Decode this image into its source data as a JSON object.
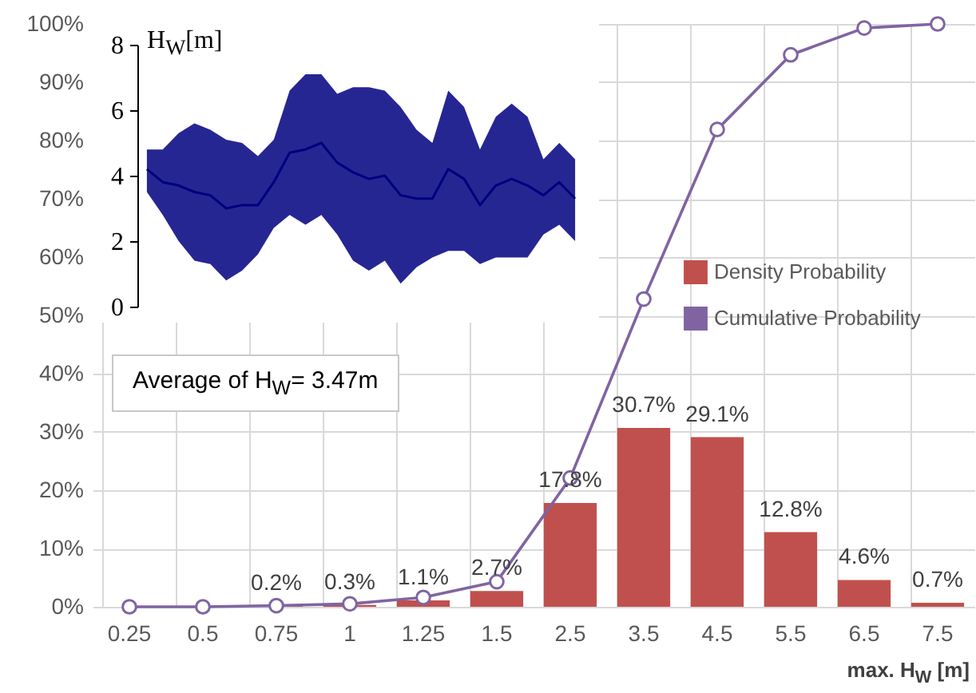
{
  "chart_data": [
    {
      "type": "bar",
      "categories": [
        "0.25",
        "0.5",
        "0.75",
        "1",
        "1.25",
        "1.5",
        "2.5",
        "3.5",
        "4.5",
        "5.5",
        "6.5",
        "7.5"
      ],
      "series": [
        {
          "name": "Density Probability",
          "type": "bar",
          "color": "#c0504d",
          "values": [
            0,
            0,
            0.2,
            0.3,
            1.1,
            2.7,
            17.8,
            30.7,
            29.1,
            12.8,
            4.6,
            0.7
          ],
          "value_labels": [
            null,
            null,
            "0.2%",
            "0.3%",
            "1.1%",
            "2.7%",
            "17.8%",
            "30.7%",
            "29.1%",
            "12.8%",
            "4.6%",
            "0.7%"
          ]
        },
        {
          "name": "Cumulative Probability",
          "type": "line",
          "color": "#8064a2",
          "values": [
            0,
            0,
            0.2,
            0.5,
            1.6,
            4.3,
            22.1,
            52.8,
            81.9,
            94.7,
            99.3,
            100
          ]
        }
      ],
      "xlabel": "max. H$_{W}$ [m]",
      "ylim": [
        0,
        100
      ],
      "yticks": [
        {
          "value": 0,
          "label": "0%"
        },
        {
          "value": 10,
          "label": "10%"
        },
        {
          "value": 20,
          "label": "20%"
        },
        {
          "value": 30,
          "label": "30%"
        },
        {
          "value": 40,
          "label": "40%"
        },
        {
          "value": 50,
          "label": "50%"
        },
        {
          "value": 60,
          "label": "60%"
        },
        {
          "value": 70,
          "label": "70%"
        },
        {
          "value": 80,
          "label": "80%"
        },
        {
          "value": 90,
          "label": "90%"
        },
        {
          "value": 100,
          "label": "100%"
        }
      ],
      "grid": true,
      "legend": "right",
      "marker": "circle",
      "annotations": [
        "Average  of H$_{W}$= 3.47m"
      ]
    },
    {
      "type": "line",
      "categories": [
        null,
        null,
        null,
        null,
        null,
        null,
        null,
        null,
        null,
        null,
        null,
        null,
        null,
        null,
        null,
        null,
        null,
        null,
        null,
        null,
        null,
        null,
        null,
        null,
        null,
        null,
        null,
        null
      ],
      "series": [
        {
          "color": "#000080",
          "values": [
            4.2,
            3.8,
            3.7,
            3.5,
            3.4,
            3.0,
            3.1,
            3.1,
            3.8,
            4.7,
            4.8,
            5.0,
            4.4,
            4.1,
            3.9,
            4.0,
            3.4,
            3.3,
            3.3,
            4.2,
            3.9,
            3.1,
            3.7,
            3.9,
            3.7,
            3.4,
            3.8,
            3.3
          ],
          "upper": [
            4.8,
            4.8,
            5.3,
            5.6,
            5.4,
            5.1,
            5.0,
            4.6,
            5.1,
            6.6,
            7.1,
            7.1,
            6.5,
            6.7,
            6.7,
            6.6,
            6.1,
            5.4,
            5.0,
            6.6,
            6.1,
            4.8,
            5.8,
            6.2,
            5.8,
            4.5,
            5.0,
            4.5
          ],
          "lower": [
            3.5,
            2.8,
            2.0,
            1.4,
            1.3,
            0.8,
            1.1,
            1.6,
            2.4,
            2.8,
            2.5,
            2.8,
            2.2,
            1.4,
            1.1,
            1.4,
            0.7,
            1.2,
            1.5,
            1.7,
            1.7,
            1.3,
            1.5,
            1.5,
            1.5,
            2.2,
            2.5,
            2.0
          ]
        }
      ],
      "ylabel": "H$_{W}$[m]",
      "ylim": [
        0,
        8
      ],
      "yticks": [
        0,
        2,
        4,
        6,
        8
      ],
      "tick_labels": "y"
    }
  ]
}
